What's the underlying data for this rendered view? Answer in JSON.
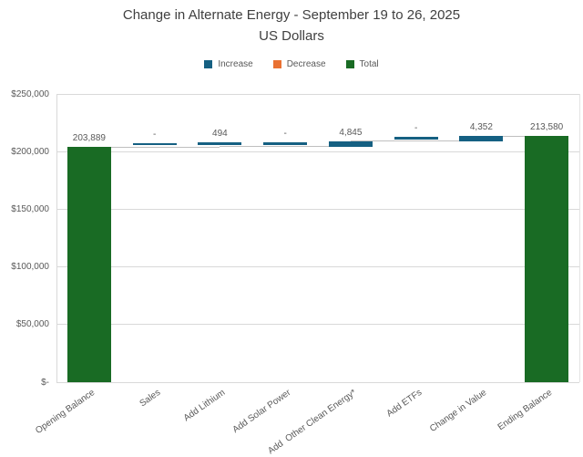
{
  "chart_data": {
    "type": "bar",
    "subtype": "waterfall",
    "title": "Change in Alternate Energy - September 19 to 26, 2025",
    "subtitle": "US Dollars",
    "legend_position": "top",
    "grid": true,
    "ylim": [
      0,
      250000
    ],
    "yticks": [
      {
        "value": 250000,
        "label": "$250,000"
      },
      {
        "value": 200000,
        "label": "$200,000"
      },
      {
        "value": 150000,
        "label": "$150,000"
      },
      {
        "value": 100000,
        "label": "$100,000"
      },
      {
        "value": 50000,
        "label": "$50,000"
      },
      {
        "value": 0,
        "label": "$-"
      }
    ],
    "categories": [
      "Opening Balance",
      "Sales",
      "Add Lithium",
      "Add Solar Power",
      "Add  Other Clean Energy*",
      "Add ETFs",
      "Change in Value",
      "Ending Balance"
    ],
    "points": [
      {
        "category": "Opening Balance",
        "role": "total",
        "value": 203889,
        "label": "203,889"
      },
      {
        "category": "Sales",
        "role": "increase",
        "value": 0,
        "label": "-"
      },
      {
        "category": "Add Lithium",
        "role": "increase",
        "value": 494,
        "label": "494"
      },
      {
        "category": "Add Solar Power",
        "role": "increase",
        "value": 0,
        "label": "-"
      },
      {
        "category": "Add  Other Clean Energy*",
        "role": "increase",
        "value": 4845,
        "label": "4,845"
      },
      {
        "category": "Add ETFs",
        "role": "increase",
        "value": 0,
        "label": "-"
      },
      {
        "category": "Change in Value",
        "role": "increase",
        "value": 4352,
        "label": "4,352"
      },
      {
        "category": "Ending Balance",
        "role": "total",
        "value": 213580,
        "label": "213,580"
      }
    ],
    "colors": {
      "increase": "#156082",
      "decrease": "#E97132",
      "total": "#196B24",
      "gridline": "#D9D9D9",
      "connector": "#BFBFBF",
      "text": "#595959",
      "title": "#404040"
    }
  },
  "legend": [
    {
      "key": "increase",
      "label": "Increase",
      "color": "#156082"
    },
    {
      "key": "decrease",
      "label": "Decrease",
      "color": "#E97132"
    },
    {
      "key": "total",
      "label": "Total",
      "color": "#196B24"
    }
  ]
}
